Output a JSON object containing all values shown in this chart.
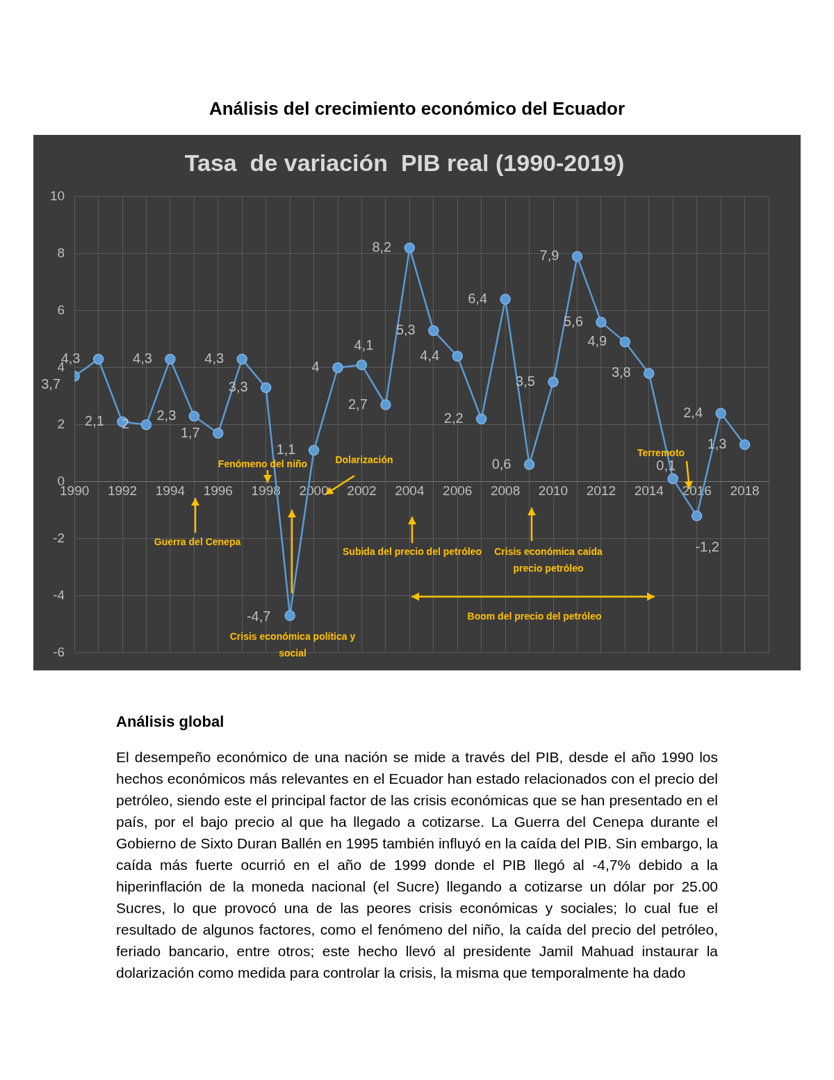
{
  "chart_data": {
    "type": "line",
    "title": "Tasa  de variación  PIB real (1990-2019)",
    "x": [
      1990,
      1991,
      1992,
      1993,
      1994,
      1995,
      1996,
      1997,
      1998,
      1999,
      2000,
      2001,
      2002,
      2003,
      2004,
      2005,
      2006,
      2007,
      2008,
      2009,
      2010,
      2011,
      2012,
      2013,
      2014,
      2015,
      2016,
      2017,
      2018
    ],
    "series": [
      {
        "color": "#5b9bd5",
        "values": [
          3.7,
          4.3,
          2.1,
          2,
          4.3,
          2.3,
          1.7,
          4.3,
          3.3,
          -4.7,
          1.1,
          4,
          4.1,
          2.7,
          8.2,
          5.3,
          4.4,
          2.2,
          6.4,
          0.6,
          3.5,
          7.9,
          5.6,
          4.9,
          3.8,
          0.1,
          -1.2,
          2.4,
          1.3
        ],
        "value_labels": [
          "3,7",
          "4,3",
          "2,1",
          "2",
          "4,3",
          "2,3",
          "1,7",
          "4,3",
          "3,3",
          "-4,7",
          "1,1",
          "4",
          "4,1",
          "2,7",
          "8,2",
          "5,3",
          "4,4",
          "2,2",
          "6,4",
          "0,6",
          "3,5",
          "7,9",
          "5,6",
          "4,9",
          "3,8",
          "0,1",
          "-1,2",
          "2,4",
          "1,3"
        ]
      }
    ],
    "xlim": [
      1990,
      2019
    ],
    "xticks": [
      1990,
      {
        "value": 1991,
        "label": null
      },
      1992,
      {
        "value": 1993,
        "label": null
      },
      1994,
      {
        "value": 1995,
        "label": null
      },
      1996,
      {
        "value": 1997,
        "label": null
      },
      1998,
      {
        "value": 1999,
        "label": null
      },
      2000,
      {
        "value": 2001,
        "label": null
      },
      2002,
      {
        "value": 2003,
        "label": null
      },
      2004,
      {
        "value": 2005,
        "label": null
      },
      2006,
      {
        "value": 2007,
        "label": null
      },
      2008,
      {
        "value": 2009,
        "label": null
      },
      2010,
      {
        "value": 2011,
        "label": null
      },
      2012,
      {
        "value": 2013,
        "label": null
      },
      2014,
      {
        "value": 2015,
        "label": null
      },
      2016,
      {
        "value": 2017,
        "label": null
      },
      2018,
      {
        "value": 2019,
        "label": null
      }
    ],
    "ylim": [
      -6,
      10
    ],
    "yticks": [
      -6,
      -4,
      -2,
      0,
      2,
      4,
      6,
      8,
      10
    ],
    "grid": true,
    "legend": false,
    "marker": "circle",
    "line_style": "solid",
    "annotations": [
      "Análisis del crecimiento económico del Ecuador",
      "Análisis global",
      "El desempeño económico de una nación se mide a través del PIB, desde el año 1990 los hechos económicos más relevantes en el Ecuador han estado relacionados con el precio del petróleo, siendo este el principal factor de las crisis económicas que se han presentado en el país, por el bajo precio al que ha llegado a cotizarse. La Guerra del Cenepa durante el Gobierno de Sixto Duran Ballén en 1995 también influyó en la caída del PIB. Sin embargo, la caída más fuerte ocurrió en el año de 1999 donde el PIB llegó al -4,7% debido a la hiperinflación de la moneda nacional (el Sucre) llegando a cotizarse un dólar por 25.00 Sucres, lo que provocó una de las peores crisis económicas y sociales; lo cual fue el resultado de algunos factores, como el fenómeno del niño, la caída del precio del petróleo, feriado bancario, entre otros; este hecho llevó al  presidente Jamil Mahuad instaurar la dolarización como medida para controlar la crisis, la misma que temporalmente ha dado",
      "Fenómeno del niño",
      "Dolarización",
      "Guerra del Cenepa",
      "Crisis económica política y social",
      "Subida del precio del petróleo",
      "Crisis económica caída precio petróleo",
      "Boom del precio del petróleo",
      "Terremoto"
    ]
  }
}
